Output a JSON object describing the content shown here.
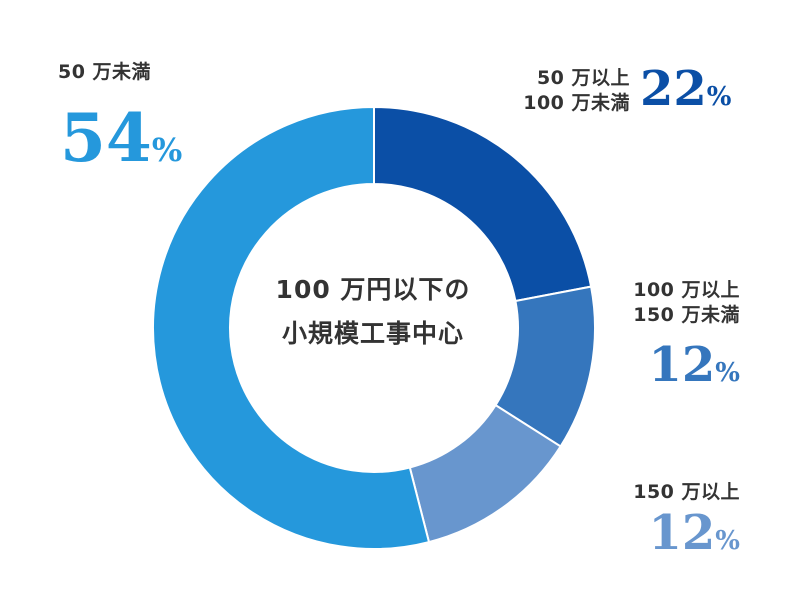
{
  "chart_data": {
    "type": "pie",
    "donut": true,
    "center_text": [
      "100 万円以下の",
      "小規模工事中心"
    ],
    "slices": [
      {
        "label_lines": [
          "50 万以上",
          "100 万未満"
        ],
        "value": 22,
        "color": "#0b4fa6"
      },
      {
        "label_lines": [
          "100 万以上",
          "150 万未満"
        ],
        "value": 12,
        "color": "#3576bd"
      },
      {
        "label_lines": [
          "150 万以上"
        ],
        "value": 12,
        "color": "#6896ce"
      },
      {
        "label_lines": [
          "50 万未満"
        ],
        "value": 54,
        "color": "#2598dc"
      }
    ],
    "percent_sign": "%",
    "start_angle_deg": 0,
    "direction": "clockwise",
    "legend": "none"
  }
}
